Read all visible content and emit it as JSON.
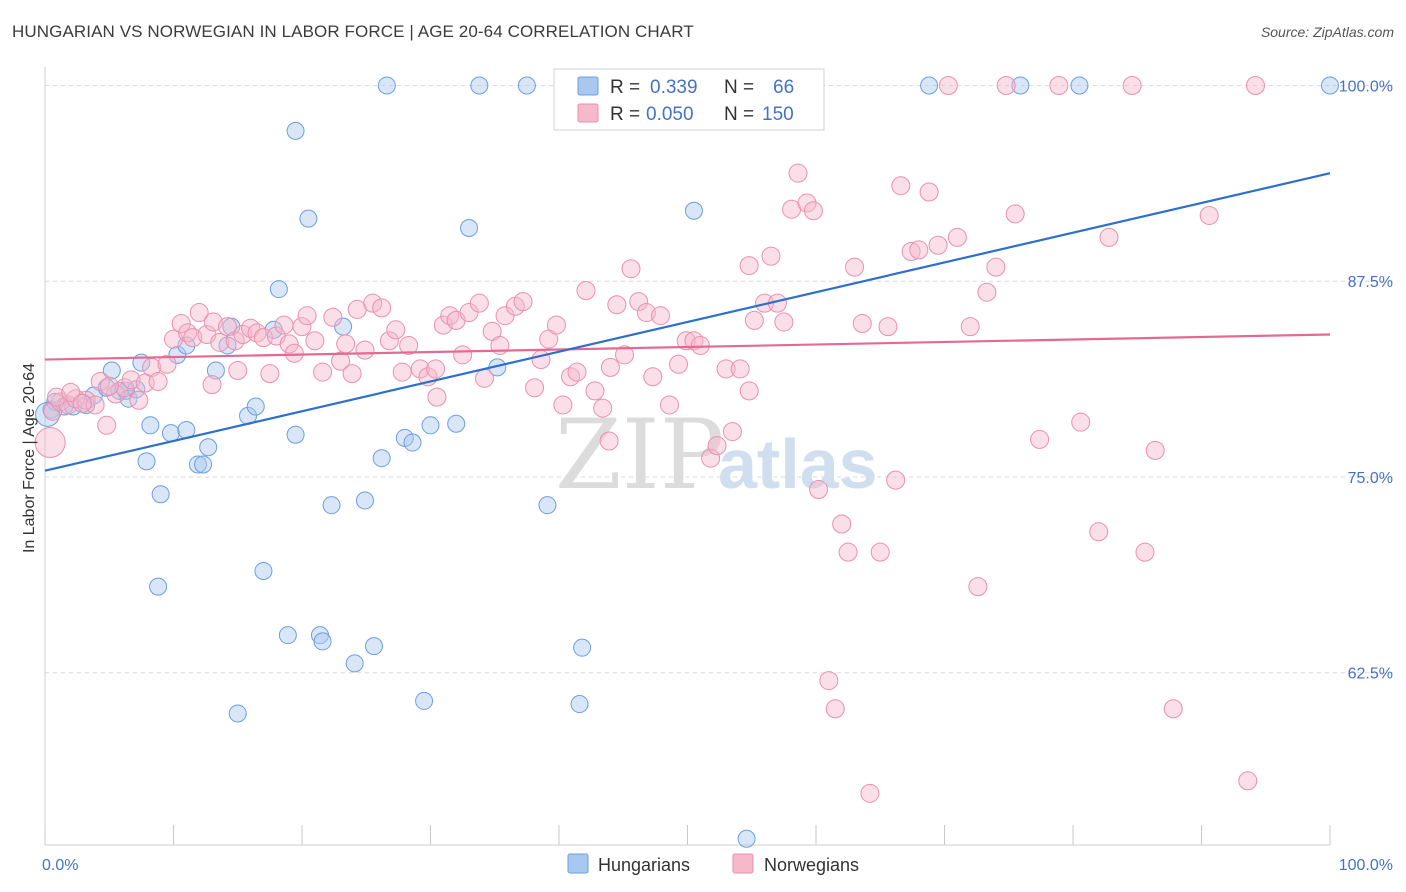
{
  "title": "HUNGARIAN VS NORWEGIAN IN LABOR FORCE | AGE 20-64 CORRELATION CHART",
  "source": "Source: ZipAtlas.com",
  "watermark": {
    "zip": "ZIP",
    "atlas": "atlas"
  },
  "colors": {
    "hungarian_fill": "#a9c8f0",
    "hungarian_stroke": "#6a9fe0",
    "hungarian_line": "#2d6fcc",
    "norwegian_fill": "#f5b9cb",
    "norwegian_stroke": "#ec8fab",
    "norwegian_line": "#e46a94",
    "grid": "#d9d9d9",
    "axis_text": "#4472c4"
  },
  "legend": {
    "r_label": "R =",
    "n_label": "N =",
    "hungarian": {
      "r": "0.339",
      "n": "66"
    },
    "norwegian": {
      "r": "0.050",
      "n": "150"
    }
  },
  "chart_data": {
    "type": "scatter",
    "title": "HUNGARIAN VS NORWEGIAN IN LABOR FORCE | AGE 20-64 CORRELATION CHART",
    "xlabel": "",
    "ylabel": "In Labor Force | Age 20-64",
    "xlim": [
      0,
      100
    ],
    "ylim": [
      51.5,
      101.5
    ],
    "x_tick_labels": [
      "0.0%",
      "100.0%"
    ],
    "y_ticks": [
      62.5,
      75.0,
      87.5,
      100.0
    ],
    "y_tick_labels": [
      "62.5%",
      "75.0%",
      "87.5%",
      "100.0%"
    ],
    "grid": true,
    "legend_position": "bottom",
    "series": [
      {
        "name": "Hungarians",
        "points": [
          [
            0.5,
            79.3
          ],
          [
            0.8,
            79.8
          ],
          [
            1.5,
            79.5
          ],
          [
            2.2,
            79.5
          ],
          [
            3.2,
            79.6
          ],
          [
            3.8,
            80.2
          ],
          [
            4.8,
            80.7
          ],
          [
            5.2,
            81.8
          ],
          [
            5.8,
            80.5
          ],
          [
            6.3,
            80.5
          ],
          [
            6.5,
            80.0
          ],
          [
            7.1,
            80.6
          ],
          [
            7.5,
            82.3
          ],
          [
            7.9,
            76.0
          ],
          [
            8.2,
            78.3
          ],
          [
            9.0,
            73.9
          ],
          [
            8.8,
            68.0
          ],
          [
            9.8,
            77.8
          ],
          [
            10.3,
            82.8
          ],
          [
            11.0,
            78.0
          ],
          [
            11.0,
            83.4
          ],
          [
            11.9,
            75.8
          ],
          [
            12.3,
            75.8
          ],
          [
            12.7,
            76.9
          ],
          [
            13.3,
            81.8
          ],
          [
            14.2,
            83.4
          ],
          [
            14.5,
            84.6
          ],
          [
            15.0,
            59.9
          ],
          [
            15.8,
            78.9
          ],
          [
            16.4,
            79.5
          ],
          [
            17.0,
            69.0
          ],
          [
            17.8,
            84.4
          ],
          [
            18.2,
            87.0
          ],
          [
            18.9,
            64.9
          ],
          [
            19.5,
            97.1
          ],
          [
            19.5,
            77.7
          ],
          [
            20.5,
            91.5
          ],
          [
            21.4,
            64.9
          ],
          [
            21.6,
            64.5
          ],
          [
            22.3,
            73.2
          ],
          [
            23.2,
            84.6
          ],
          [
            24.1,
            63.1
          ],
          [
            24.9,
            73.5
          ],
          [
            25.6,
            64.2
          ],
          [
            26.2,
            76.2
          ],
          [
            26.6,
            100.0
          ],
          [
            28.0,
            77.5
          ],
          [
            28.6,
            77.2
          ],
          [
            29.5,
            60.7
          ],
          [
            30.0,
            78.3
          ],
          [
            32.0,
            78.4
          ],
          [
            33.0,
            90.9
          ],
          [
            33.8,
            100.0
          ],
          [
            35.2,
            82.0
          ],
          [
            37.5,
            100.0
          ],
          [
            39.1,
            73.2
          ],
          [
            41.6,
            60.5
          ],
          [
            41.8,
            64.1
          ],
          [
            50.5,
            92.0
          ],
          [
            54.6,
            51.9
          ],
          [
            56.0,
            100.0
          ],
          [
            68.8,
            100.0
          ],
          [
            75.9,
            100.0
          ],
          [
            80.5,
            100.0
          ],
          [
            100.0,
            100.0
          ],
          [
            0.2,
            79.0
          ]
        ],
        "regression": {
          "x": [
            0,
            100
          ],
          "y": [
            75.4,
            94.4
          ]
        }
      },
      {
        "name": "Norwegians",
        "points": [
          [
            0.4,
            77.2
          ],
          [
            0.6,
            79.2
          ],
          [
            1.2,
            79.8
          ],
          [
            1.8,
            79.6
          ],
          [
            2.4,
            80.0
          ],
          [
            3.2,
            79.9
          ],
          [
            3.9,
            79.6
          ],
          [
            4.8,
            78.3
          ],
          [
            5.5,
            80.3
          ],
          [
            6.2,
            80.7
          ],
          [
            6.7,
            81.2
          ],
          [
            7.3,
            79.9
          ],
          [
            7.8,
            81.0
          ],
          [
            8.3,
            82.0
          ],
          [
            8.8,
            81.1
          ],
          [
            9.5,
            82.2
          ],
          [
            10.0,
            83.8
          ],
          [
            10.6,
            84.8
          ],
          [
            11.1,
            84.2
          ],
          [
            11.5,
            83.9
          ],
          [
            12.0,
            85.5
          ],
          [
            12.6,
            84.1
          ],
          [
            13.1,
            84.9
          ],
          [
            13.6,
            83.6
          ],
          [
            14.2,
            84.6
          ],
          [
            14.8,
            83.7
          ],
          [
            15.4,
            84.1
          ],
          [
            16.0,
            84.5
          ],
          [
            16.5,
            84.2
          ],
          [
            17.0,
            83.9
          ],
          [
            17.5,
            81.6
          ],
          [
            18.0,
            84.0
          ],
          [
            18.6,
            84.7
          ],
          [
            19.0,
            83.5
          ],
          [
            19.4,
            82.9
          ],
          [
            20.0,
            84.6
          ],
          [
            20.4,
            85.3
          ],
          [
            21.0,
            83.7
          ],
          [
            21.6,
            81.7
          ],
          [
            22.4,
            85.2
          ],
          [
            23.0,
            82.4
          ],
          [
            23.4,
            83.5
          ],
          [
            23.9,
            81.6
          ],
          [
            24.3,
            85.7
          ],
          [
            24.9,
            83.1
          ],
          [
            25.5,
            86.1
          ],
          [
            26.2,
            85.8
          ],
          [
            26.8,
            83.7
          ],
          [
            27.3,
            84.4
          ],
          [
            27.8,
            81.7
          ],
          [
            28.3,
            83.4
          ],
          [
            29.2,
            81.9
          ],
          [
            29.8,
            81.4
          ],
          [
            30.4,
            81.9
          ],
          [
            31.0,
            84.7
          ],
          [
            31.5,
            85.3
          ],
          [
            32.0,
            85.0
          ],
          [
            32.5,
            82.8
          ],
          [
            33.0,
            85.5
          ],
          [
            33.8,
            86.1
          ],
          [
            34.2,
            81.3
          ],
          [
            34.8,
            84.3
          ],
          [
            35.4,
            83.4
          ],
          [
            35.8,
            85.3
          ],
          [
            36.6,
            85.9
          ],
          [
            37.2,
            86.2
          ],
          [
            38.1,
            80.7
          ],
          [
            38.6,
            82.5
          ],
          [
            39.2,
            83.8
          ],
          [
            39.8,
            84.7
          ],
          [
            40.3,
            79.6
          ],
          [
            40.9,
            81.4
          ],
          [
            41.4,
            81.7
          ],
          [
            42.1,
            86.9
          ],
          [
            42.8,
            80.5
          ],
          [
            43.4,
            79.4
          ],
          [
            43.9,
            77.3
          ],
          [
            44.5,
            86.0
          ],
          [
            45.1,
            82.8
          ],
          [
            45.6,
            88.3
          ],
          [
            46.2,
            86.2
          ],
          [
            46.8,
            85.5
          ],
          [
            47.3,
            81.4
          ],
          [
            47.9,
            85.3
          ],
          [
            48.6,
            79.6
          ],
          [
            49.3,
            82.2
          ],
          [
            49.9,
            83.7
          ],
          [
            50.5,
            83.7
          ],
          [
            51.0,
            83.4
          ],
          [
            51.8,
            76.2
          ],
          [
            52.3,
            77.0
          ],
          [
            53.0,
            81.9
          ],
          [
            53.5,
            77.9
          ],
          [
            54.1,
            81.9
          ],
          [
            54.8,
            88.5
          ],
          [
            55.2,
            85.0
          ],
          [
            56.0,
            86.1
          ],
          [
            56.5,
            89.1
          ],
          [
            57.0,
            86.1
          ],
          [
            57.5,
            84.9
          ],
          [
            58.1,
            92.1
          ],
          [
            58.6,
            94.4
          ],
          [
            59.3,
            92.5
          ],
          [
            59.8,
            92.0
          ],
          [
            60.2,
            74.2
          ],
          [
            61.0,
            62.0
          ],
          [
            61.5,
            60.2
          ],
          [
            62.0,
            72.0
          ],
          [
            62.5,
            70.2
          ],
          [
            63.0,
            88.4
          ],
          [
            63.6,
            84.8
          ],
          [
            64.2,
            54.8
          ],
          [
            65.0,
            70.2
          ],
          [
            65.6,
            84.6
          ],
          [
            66.2,
            74.8
          ],
          [
            66.6,
            93.6
          ],
          [
            67.4,
            89.4
          ],
          [
            68.0,
            89.5
          ],
          [
            68.8,
            93.2
          ],
          [
            69.5,
            89.8
          ],
          [
            70.3,
            100.0
          ],
          [
            71.0,
            90.3
          ],
          [
            72.0,
            84.6
          ],
          [
            72.6,
            68.0
          ],
          [
            73.3,
            86.8
          ],
          [
            74.0,
            88.4
          ],
          [
            74.8,
            100.0
          ],
          [
            75.5,
            91.8
          ],
          [
            77.4,
            77.4
          ],
          [
            78.9,
            100.0
          ],
          [
            80.6,
            78.5
          ],
          [
            82.0,
            71.5
          ],
          [
            82.8,
            90.3
          ],
          [
            84.6,
            100.0
          ],
          [
            85.6,
            70.2
          ],
          [
            86.4,
            76.7
          ],
          [
            87.8,
            60.2
          ],
          [
            90.6,
            91.7
          ],
          [
            93.6,
            55.6
          ],
          [
            94.2,
            100.0
          ],
          [
            0.9,
            80.1
          ],
          [
            2.0,
            80.4
          ],
          [
            2.9,
            79.7
          ],
          [
            4.3,
            81.1
          ],
          [
            5.0,
            80.8
          ],
          [
            13.0,
            80.9
          ],
          [
            15.0,
            81.8
          ],
          [
            30.5,
            80.1
          ],
          [
            44.0,
            82.0
          ],
          [
            54.8,
            80.5
          ]
        ],
        "regression": {
          "x": [
            0,
            100
          ],
          "y": [
            82.5,
            84.1
          ]
        }
      }
    ]
  },
  "bottom_legend": [
    {
      "label": "Hungarians"
    },
    {
      "label": "Norwegians"
    }
  ]
}
